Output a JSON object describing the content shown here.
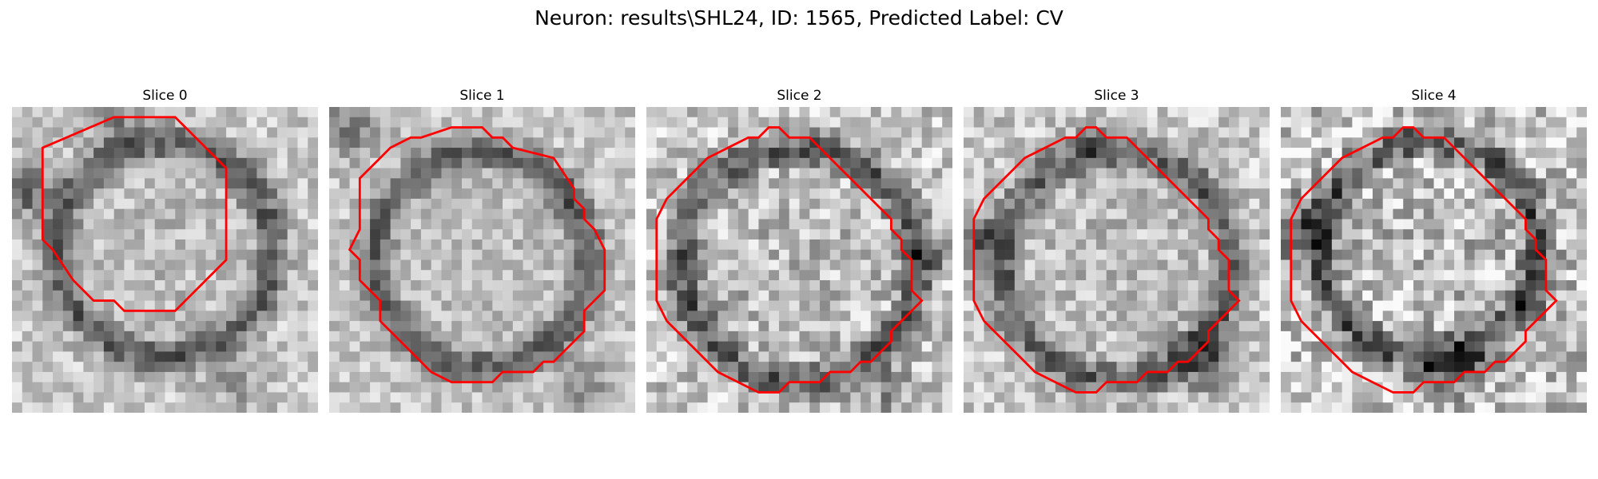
{
  "figure": {
    "title": "Neuron: results\\SHL24, ID: 1565, Predicted Label: CV"
  },
  "colors": {
    "contour": "#ff0000",
    "background": "#ffffff"
  },
  "panels": [
    {
      "title": "Slice 0",
      "contour": [
        [
          10,
          1
        ],
        [
          16,
          1
        ],
        [
          21,
          6
        ],
        [
          21,
          15
        ],
        [
          19,
          17
        ],
        [
          17,
          19
        ],
        [
          16,
          20
        ],
        [
          11,
          20
        ],
        [
          10,
          19
        ],
        [
          8,
          19
        ],
        [
          6,
          17
        ],
        [
          4,
          14
        ],
        [
          3,
          13
        ],
        [
          3,
          4
        ]
      ]
    },
    {
      "title": "Slice 1",
      "contour": [
        [
          12,
          2
        ],
        [
          15,
          2
        ],
        [
          16,
          3
        ],
        [
          17,
          3
        ],
        [
          18,
          4
        ],
        [
          22,
          5
        ],
        [
          24,
          8
        ],
        [
          24,
          9
        ],
        [
          25,
          10
        ],
        [
          25,
          11
        ],
        [
          26,
          12
        ],
        [
          27,
          14
        ],
        [
          27,
          18
        ],
        [
          26,
          19
        ],
        [
          25,
          20
        ],
        [
          25,
          22
        ],
        [
          23,
          24
        ],
        [
          22,
          25
        ],
        [
          21,
          25
        ],
        [
          20,
          26
        ],
        [
          17,
          26
        ],
        [
          16,
          27
        ],
        [
          12,
          27
        ],
        [
          10,
          26
        ],
        [
          8,
          24
        ],
        [
          7,
          23
        ],
        [
          6,
          22
        ],
        [
          5,
          21
        ],
        [
          5,
          19
        ],
        [
          4,
          18
        ],
        [
          3,
          17
        ],
        [
          3,
          15
        ],
        [
          2,
          14
        ],
        [
          3,
          12
        ],
        [
          3,
          7
        ],
        [
          4,
          6
        ],
        [
          5,
          5
        ],
        [
          6,
          4
        ],
        [
          8,
          3
        ],
        [
          9,
          3
        ]
      ]
    },
    {
      "title": "Slice 2",
      "contour": [
        [
          12,
          2
        ],
        [
          13,
          2
        ],
        [
          14,
          3
        ],
        [
          16,
          3
        ],
        [
          17,
          4
        ],
        [
          18,
          5
        ],
        [
          19,
          6
        ],
        [
          20,
          7
        ],
        [
          21,
          8
        ],
        [
          22,
          9
        ],
        [
          23,
          10
        ],
        [
          24,
          11
        ],
        [
          24,
          12
        ],
        [
          25,
          13
        ],
        [
          25,
          14
        ],
        [
          26,
          15
        ],
        [
          26,
          18
        ],
        [
          27,
          19
        ],
        [
          26,
          20
        ],
        [
          25,
          21
        ],
        [
          24,
          22
        ],
        [
          24,
          23
        ],
        [
          23,
          24
        ],
        [
          22,
          25
        ],
        [
          21,
          25
        ],
        [
          20,
          26
        ],
        [
          18,
          26
        ],
        [
          17,
          27
        ],
        [
          14,
          27
        ],
        [
          13,
          28
        ],
        [
          11,
          28
        ],
        [
          9,
          27
        ],
        [
          7,
          26
        ],
        [
          6,
          25
        ],
        [
          5,
          24
        ],
        [
          4,
          23
        ],
        [
          3,
          22
        ],
        [
          2,
          21
        ],
        [
          1,
          19
        ],
        [
          1,
          11
        ],
        [
          2,
          9
        ],
        [
          3,
          8
        ],
        [
          4,
          7
        ],
        [
          5,
          6
        ],
        [
          6,
          5
        ],
        [
          8,
          4
        ],
        [
          10,
          3
        ],
        [
          11,
          3
        ]
      ]
    },
    {
      "title": "Slice 3",
      "contour": [
        [
          12,
          2
        ],
        [
          13,
          2
        ],
        [
          14,
          3
        ],
        [
          16,
          3
        ],
        [
          17,
          4
        ],
        [
          18,
          5
        ],
        [
          19,
          6
        ],
        [
          20,
          7
        ],
        [
          21,
          8
        ],
        [
          22,
          9
        ],
        [
          23,
          10
        ],
        [
          24,
          11
        ],
        [
          24,
          12
        ],
        [
          25,
          13
        ],
        [
          25,
          14
        ],
        [
          26,
          15
        ],
        [
          26,
          18
        ],
        [
          27,
          19
        ],
        [
          26,
          20
        ],
        [
          25,
          21
        ],
        [
          24,
          22
        ],
        [
          24,
          23
        ],
        [
          23,
          24
        ],
        [
          22,
          25
        ],
        [
          21,
          25
        ],
        [
          20,
          26
        ],
        [
          18,
          26
        ],
        [
          17,
          27
        ],
        [
          14,
          27
        ],
        [
          13,
          28
        ],
        [
          11,
          28
        ],
        [
          9,
          27
        ],
        [
          7,
          26
        ],
        [
          6,
          25
        ],
        [
          5,
          24
        ],
        [
          4,
          23
        ],
        [
          3,
          22
        ],
        [
          2,
          21
        ],
        [
          1,
          19
        ],
        [
          1,
          11
        ],
        [
          2,
          9
        ],
        [
          3,
          8
        ],
        [
          4,
          7
        ],
        [
          5,
          6
        ],
        [
          6,
          5
        ],
        [
          8,
          4
        ],
        [
          10,
          3
        ],
        [
          11,
          3
        ]
      ]
    },
    {
      "title": "Slice 4",
      "contour": [
        [
          12,
          2
        ],
        [
          13,
          2
        ],
        [
          14,
          3
        ],
        [
          16,
          3
        ],
        [
          17,
          4
        ],
        [
          18,
          5
        ],
        [
          19,
          6
        ],
        [
          20,
          7
        ],
        [
          21,
          8
        ],
        [
          22,
          9
        ],
        [
          23,
          10
        ],
        [
          24,
          11
        ],
        [
          24,
          12
        ],
        [
          25,
          13
        ],
        [
          25,
          14
        ],
        [
          26,
          15
        ],
        [
          26,
          18
        ],
        [
          27,
          19
        ],
        [
          26,
          20
        ],
        [
          25,
          21
        ],
        [
          24,
          22
        ],
        [
          24,
          23
        ],
        [
          23,
          24
        ],
        [
          22,
          25
        ],
        [
          21,
          25
        ],
        [
          20,
          26
        ],
        [
          18,
          26
        ],
        [
          17,
          27
        ],
        [
          14,
          27
        ],
        [
          13,
          28
        ],
        [
          11,
          28
        ],
        [
          9,
          27
        ],
        [
          7,
          26
        ],
        [
          6,
          25
        ],
        [
          5,
          24
        ],
        [
          4,
          23
        ],
        [
          3,
          22
        ],
        [
          2,
          21
        ],
        [
          1,
          19
        ],
        [
          1,
          11
        ],
        [
          2,
          9
        ],
        [
          3,
          8
        ],
        [
          4,
          7
        ],
        [
          5,
          6
        ],
        [
          6,
          5
        ],
        [
          8,
          4
        ],
        [
          10,
          3
        ],
        [
          11,
          3
        ]
      ]
    }
  ]
}
